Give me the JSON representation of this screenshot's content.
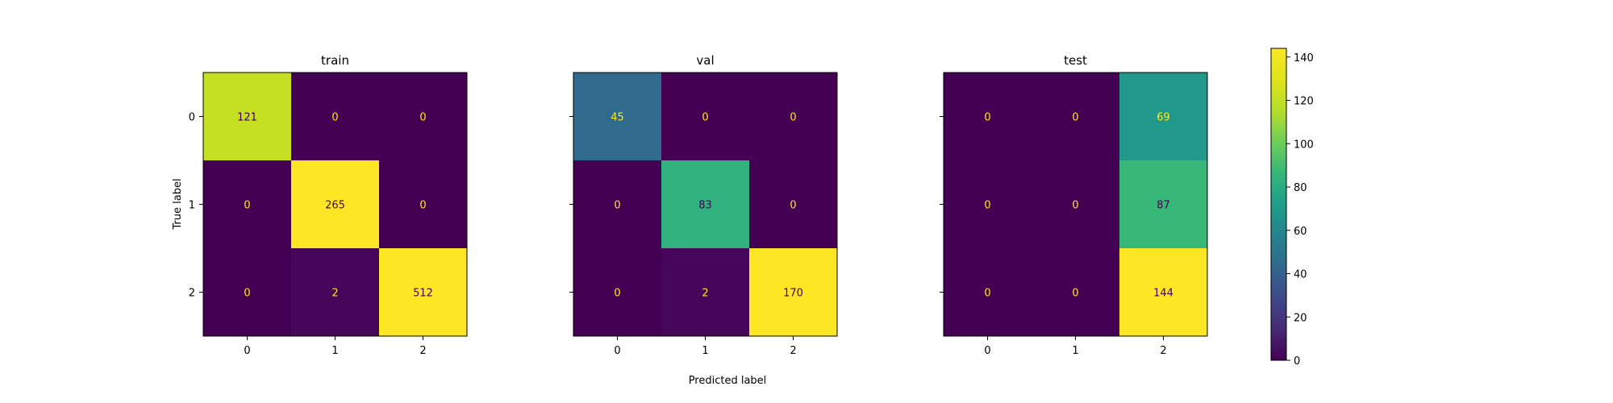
{
  "chart_data": [
    {
      "type": "heatmap",
      "title": "train",
      "x_categories": [
        "0",
        "1",
        "2"
      ],
      "y_categories": [
        "0",
        "1",
        "2"
      ],
      "xlabel": "",
      "ylabel": "True label",
      "values": [
        [
          121,
          0,
          0
        ],
        [
          0,
          265,
          0
        ],
        [
          0,
          2,
          512
        ]
      ]
    },
    {
      "type": "heatmap",
      "title": "val",
      "x_categories": [
        "0",
        "1",
        "2"
      ],
      "y_categories": [
        "0",
        "1",
        "2"
      ],
      "xlabel": "Predicted label",
      "ylabel": "",
      "values": [
        [
          45,
          0,
          0
        ],
        [
          0,
          83,
          0
        ],
        [
          0,
          2,
          170
        ]
      ]
    },
    {
      "type": "heatmap",
      "title": "test",
      "x_categories": [
        "0",
        "1",
        "2"
      ],
      "y_categories": [
        "0",
        "1",
        "2"
      ],
      "xlabel": "",
      "ylabel": "",
      "values": [
        [
          0,
          0,
          69
        ],
        [
          0,
          0,
          87
        ],
        [
          0,
          0,
          144
        ]
      ]
    }
  ],
  "colorbar": {
    "colormap": "viridis",
    "min": 0,
    "max": 144,
    "ticks": [
      0,
      20,
      40,
      60,
      80,
      100,
      120,
      140
    ]
  },
  "colors": {
    "text_on_dark": "#fde725",
    "text_on_light": "#440154",
    "frame": "#000000"
  }
}
